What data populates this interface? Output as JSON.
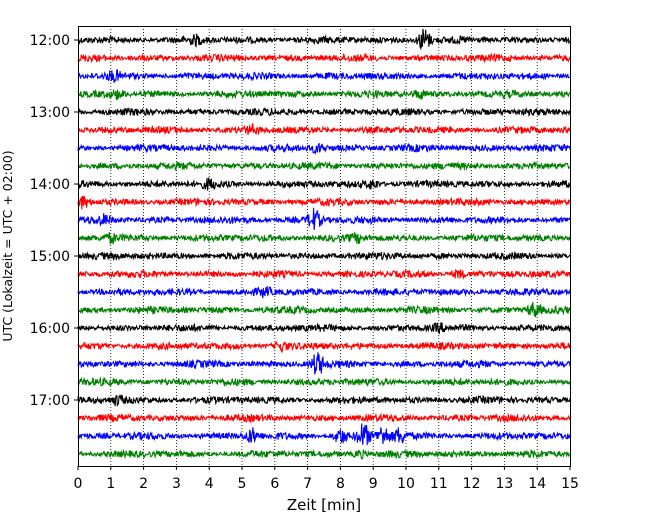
{
  "chart_data": {
    "type": "line",
    "title": "",
    "xlabel": "Zeit  [min]",
    "ylabel": "UTC (Lokalzeit = UTC + 02:00)",
    "xlim": [
      0,
      15
    ],
    "x_ticks": [
      0,
      1,
      2,
      3,
      4,
      5,
      6,
      7,
      8,
      9,
      10,
      11,
      12,
      13,
      14,
      15
    ],
    "x_tick_labels": [
      "0",
      "1",
      "2",
      "3",
      "4",
      "5",
      "6",
      "7",
      "8",
      "9",
      "10",
      "11",
      "12",
      "13",
      "14",
      "15"
    ],
    "y_tick_labels": [
      "12:00",
      "13:00",
      "14:00",
      "15:00",
      "16:00",
      "17:00"
    ],
    "grid": "vertical dotted",
    "colors": [
      "#000000",
      "#ff0000",
      "#0000ff",
      "#008000"
    ],
    "traces": [
      {
        "start": "12:00",
        "color": "#000000",
        "bursts": [
          {
            "t": 3.6,
            "a": 1.5
          },
          {
            "t": 10.55,
            "a": 5.0
          }
        ]
      },
      {
        "start": "12:15",
        "color": "#ff0000",
        "bursts": []
      },
      {
        "start": "12:30",
        "color": "#0000ff",
        "bursts": [
          {
            "t": 1.1,
            "a": 1.6
          }
        ]
      },
      {
        "start": "12:45",
        "color": "#008000",
        "bursts": [
          {
            "t": 1.2,
            "a": 1.4
          },
          {
            "t": 10.4,
            "a": 1.4
          }
        ]
      },
      {
        "start": "13:00",
        "color": "#000000",
        "bursts": []
      },
      {
        "start": "13:15",
        "color": "#ff0000",
        "bursts": [
          {
            "t": 5.3,
            "a": 1.4
          }
        ]
      },
      {
        "start": "13:30",
        "color": "#0000ff",
        "bursts": [
          {
            "t": 7.3,
            "a": 1.6
          }
        ]
      },
      {
        "start": "13:45",
        "color": "#008000",
        "bursts": []
      },
      {
        "start": "14:00",
        "color": "#000000",
        "bursts": [
          {
            "t": 4.0,
            "a": 1.7
          },
          {
            "t": 9.0,
            "a": 1.7
          }
        ]
      },
      {
        "start": "14:15",
        "color": "#ff0000",
        "bursts": [
          {
            "t": 0.15,
            "a": 2.2
          }
        ]
      },
      {
        "start": "14:30",
        "color": "#0000ff",
        "bursts": [
          {
            "t": 0.8,
            "a": 1.6
          },
          {
            "t": 7.2,
            "a": 4.5
          }
        ]
      },
      {
        "start": "14:45",
        "color": "#008000",
        "bursts": [
          {
            "t": 1.0,
            "a": 1.5
          },
          {
            "t": 8.5,
            "a": 1.4
          }
        ]
      },
      {
        "start": "15:00",
        "color": "#000000",
        "bursts": []
      },
      {
        "start": "15:15",
        "color": "#ff0000",
        "bursts": [
          {
            "t": 11.6,
            "a": 1.6
          }
        ]
      },
      {
        "start": "15:30",
        "color": "#0000ff",
        "bursts": [
          {
            "t": 5.7,
            "a": 1.5
          }
        ]
      },
      {
        "start": "15:45",
        "color": "#008000",
        "bursts": [
          {
            "t": 13.9,
            "a": 2.8
          }
        ]
      },
      {
        "start": "16:00",
        "color": "#000000",
        "bursts": [
          {
            "t": 11.0,
            "a": 1.4
          }
        ]
      },
      {
        "start": "16:15",
        "color": "#ff0000",
        "bursts": [
          {
            "t": 6.2,
            "a": 1.8
          }
        ]
      },
      {
        "start": "16:30",
        "color": "#0000ff",
        "bursts": [
          {
            "t": 7.3,
            "a": 4.5
          }
        ]
      },
      {
        "start": "16:45",
        "color": "#008000",
        "bursts": []
      },
      {
        "start": "17:00",
        "color": "#000000",
        "bursts": [
          {
            "t": 1.2,
            "a": 1.6
          }
        ]
      },
      {
        "start": "17:15",
        "color": "#ff0000",
        "bursts": []
      },
      {
        "start": "17:30",
        "color": "#0000ff",
        "bursts": [
          {
            "t": 5.3,
            "a": 2.8
          },
          {
            "t": 8.0,
            "a": 3.0
          },
          {
            "t": 8.7,
            "a": 5.0
          },
          {
            "t": 9.3,
            "a": 4.0
          },
          {
            "t": 9.8,
            "a": 3.0
          }
        ]
      },
      {
        "start": "17:45",
        "color": "#008000",
        "bursts": [
          {
            "t": 8.6,
            "a": 1.5
          }
        ]
      }
    ]
  }
}
